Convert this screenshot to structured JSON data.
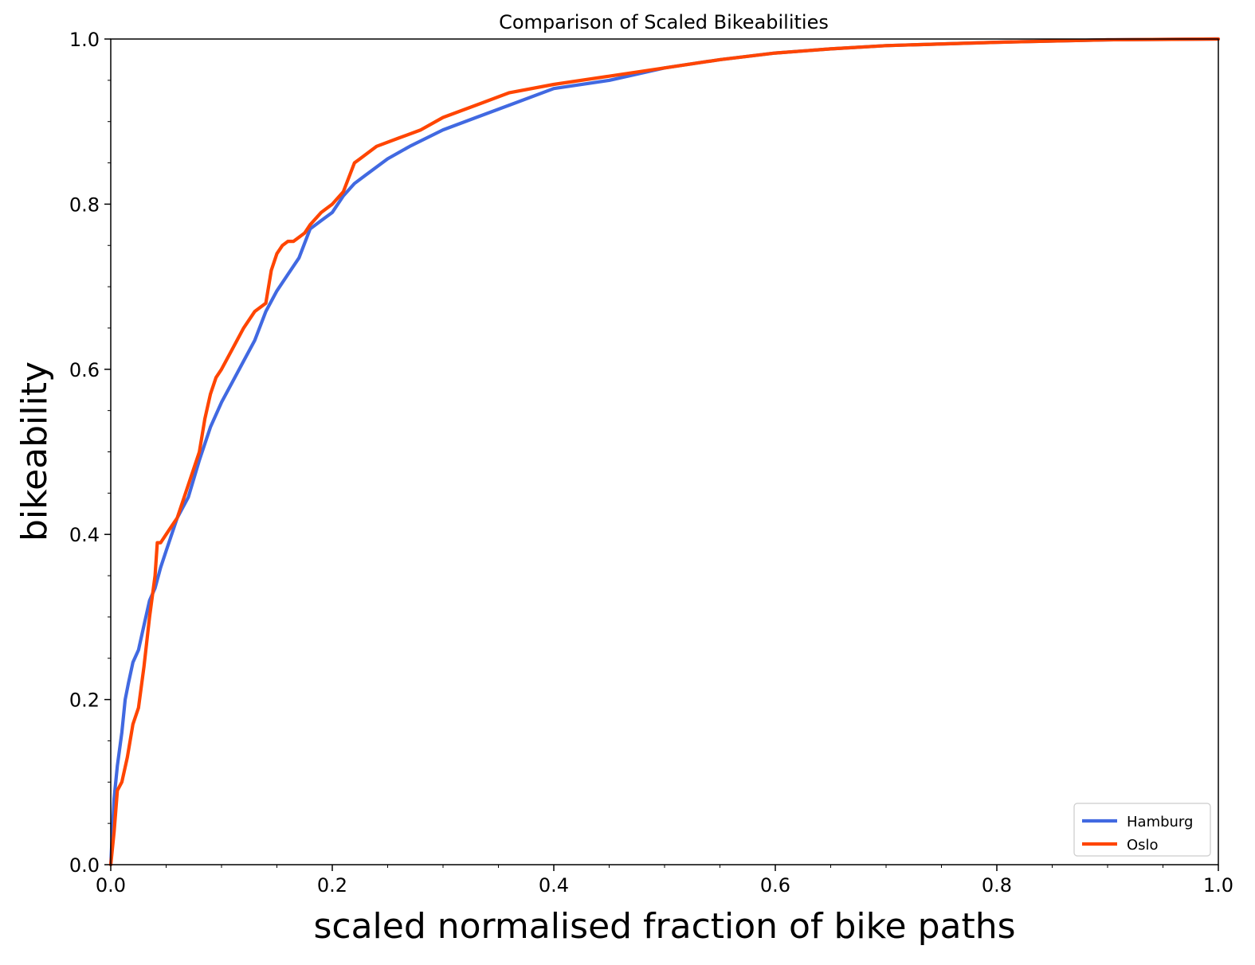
{
  "chart_data": {
    "type": "line",
    "title": "Comparison of Scaled Bikeabilities",
    "xlabel": "scaled normalised fraction of bike paths",
    "ylabel": "bikeability",
    "xlim": [
      0.0,
      1.0
    ],
    "ylim": [
      0.0,
      1.0
    ],
    "xticks": [
      "0.0",
      "0.2",
      "0.4",
      "0.6",
      "0.8",
      "1.0"
    ],
    "yticks": [
      "0.0",
      "0.2",
      "0.4",
      "0.6",
      "0.8",
      "1.0"
    ],
    "grid": false,
    "legend_position": "lower-right",
    "series": [
      {
        "name": "Hamburg",
        "color": "#4169e1",
        "x": [
          0.0,
          0.003,
          0.006,
          0.01,
          0.013,
          0.016,
          0.02,
          0.025,
          0.03,
          0.035,
          0.04,
          0.045,
          0.05,
          0.06,
          0.07,
          0.08,
          0.09,
          0.1,
          0.11,
          0.12,
          0.13,
          0.14,
          0.15,
          0.16,
          0.17,
          0.18,
          0.19,
          0.2,
          0.21,
          0.22,
          0.23,
          0.25,
          0.27,
          0.3,
          0.33,
          0.36,
          0.4,
          0.45,
          0.5,
          0.55,
          0.6,
          0.65,
          0.7,
          0.8,
          0.9,
          1.0
        ],
        "y": [
          0.0,
          0.08,
          0.12,
          0.16,
          0.2,
          0.22,
          0.245,
          0.26,
          0.29,
          0.32,
          0.335,
          0.36,
          0.38,
          0.42,
          0.445,
          0.49,
          0.53,
          0.56,
          0.585,
          0.61,
          0.635,
          0.67,
          0.695,
          0.715,
          0.735,
          0.77,
          0.78,
          0.79,
          0.81,
          0.825,
          0.835,
          0.855,
          0.87,
          0.89,
          0.905,
          0.92,
          0.94,
          0.95,
          0.965,
          0.975,
          0.983,
          0.988,
          0.992,
          0.996,
          0.999,
          1.0
        ]
      },
      {
        "name": "Oslo",
        "color": "#ff4500",
        "x": [
          0.0,
          0.003,
          0.006,
          0.01,
          0.015,
          0.02,
          0.025,
          0.03,
          0.035,
          0.04,
          0.042,
          0.045,
          0.05,
          0.055,
          0.06,
          0.07,
          0.08,
          0.085,
          0.09,
          0.095,
          0.1,
          0.11,
          0.12,
          0.13,
          0.14,
          0.145,
          0.15,
          0.155,
          0.16,
          0.165,
          0.17,
          0.175,
          0.18,
          0.19,
          0.2,
          0.21,
          0.22,
          0.225,
          0.24,
          0.26,
          0.28,
          0.3,
          0.33,
          0.36,
          0.4,
          0.45,
          0.5,
          0.55,
          0.6,
          0.65,
          0.7,
          0.8,
          0.9,
          1.0
        ],
        "y": [
          0.0,
          0.04,
          0.09,
          0.1,
          0.13,
          0.17,
          0.19,
          0.24,
          0.3,
          0.35,
          0.39,
          0.39,
          0.4,
          0.41,
          0.42,
          0.46,
          0.5,
          0.54,
          0.57,
          0.59,
          0.6,
          0.625,
          0.65,
          0.67,
          0.68,
          0.72,
          0.74,
          0.75,
          0.755,
          0.755,
          0.76,
          0.765,
          0.775,
          0.79,
          0.8,
          0.815,
          0.85,
          0.855,
          0.87,
          0.88,
          0.89,
          0.905,
          0.92,
          0.935,
          0.945,
          0.955,
          0.965,
          0.975,
          0.983,
          0.988,
          0.992,
          0.996,
          0.999,
          1.0
        ]
      }
    ]
  }
}
